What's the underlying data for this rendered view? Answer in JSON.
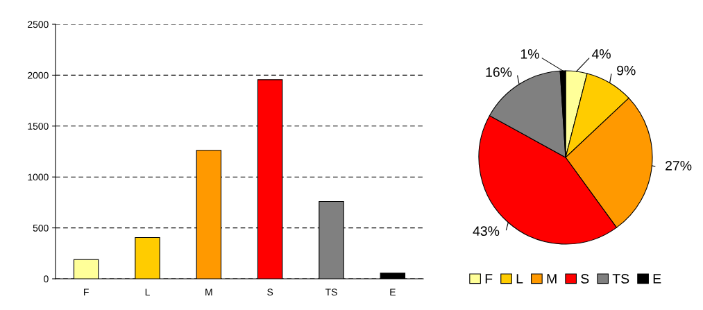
{
  "chart_data": [
    {
      "type": "bar",
      "categories": [
        "F",
        "L",
        "M",
        "S",
        "TS",
        "E"
      ],
      "values": [
        189,
        405,
        1262,
        1956,
        760,
        55
      ],
      "colors": [
        "#ffff99",
        "#ffcc00",
        "#ff9900",
        "#ff0000",
        "#808080",
        "#000000"
      ],
      "ylim": [
        0,
        2500
      ],
      "yticks": [
        0,
        500,
        1000,
        1500,
        2000,
        2500
      ],
      "grid": "y",
      "line_style": "dashed"
    },
    {
      "type": "pie",
      "categories": [
        "F",
        "L",
        "M",
        "S",
        "TS",
        "E"
      ],
      "values": [
        4,
        9,
        27,
        43,
        16,
        1
      ],
      "colors": [
        "#ffff99",
        "#ffcc00",
        "#ff9900",
        "#ff0000",
        "#808080",
        "#000000"
      ],
      "value_labels": [
        "4%",
        "9%",
        "27%",
        "43%",
        "16%",
        "1%"
      ],
      "legend": "bottom"
    }
  ]
}
